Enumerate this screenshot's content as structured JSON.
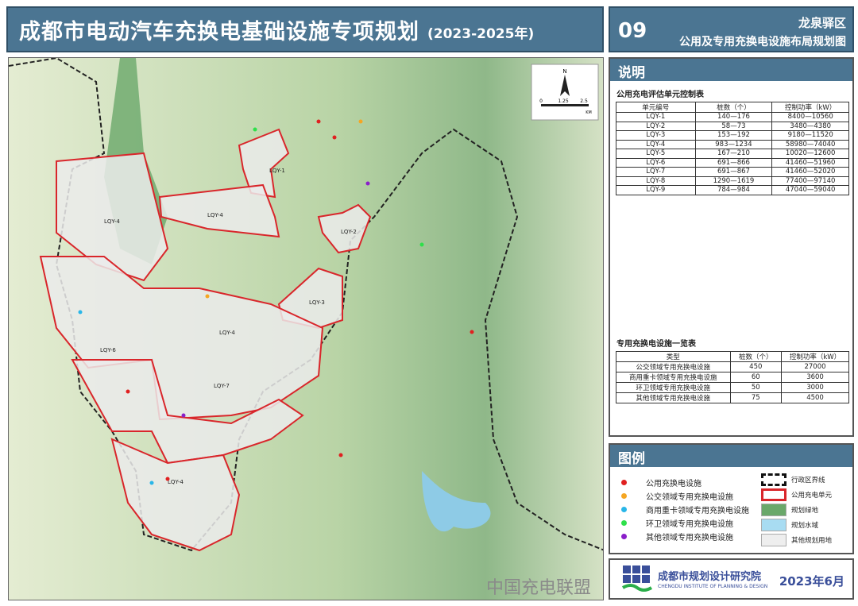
{
  "header": {
    "title": "成都市电动汽车充换电基础设施专项规划",
    "years": "(2023-2025年)",
    "sheet_no": "09",
    "district": "龙泉驿区",
    "map_title": "公用及专用充换电设施布局规划图"
  },
  "map": {
    "north": "N",
    "scale": [
      "0",
      "1.25",
      "2.5"
    ],
    "scale_unit": "KM",
    "unit_labels": [
      "LQY-1",
      "LQY-2",
      "LQY-3",
      "LQY-4",
      "LQY-4",
      "LQY-4",
      "LQY-4",
      "LQY-6",
      "LQY-7"
    ]
  },
  "notes": {
    "heading": "说明",
    "table1": {
      "title": "公用充电评估单元控制表",
      "headers": [
        "单元编号",
        "桩数（个）",
        "控制功率（kW）"
      ],
      "rows": [
        [
          "LQY-1",
          "140—176",
          "8400—10560"
        ],
        [
          "LQY-2",
          "58—73",
          "3480—4380"
        ],
        [
          "LQY-3",
          "153—192",
          "9180—11520"
        ],
        [
          "LQY-4",
          "983—1234",
          "58980—74040"
        ],
        [
          "LQY-5",
          "167—210",
          "10020—12600"
        ],
        [
          "LQY-6",
          "691—866",
          "41460—51960"
        ],
        [
          "LQY-7",
          "691—867",
          "41460—52020"
        ],
        [
          "LQY-8",
          "1290—1619",
          "77400—97140"
        ],
        [
          "LQY-9",
          "784—984",
          "47040—59040"
        ]
      ]
    },
    "table2": {
      "title": "专用充换电设施一览表",
      "headers": [
        "类型",
        "桩数（个）",
        "控制功率（kW）"
      ],
      "rows": [
        [
          "公交领域专用充换电设施",
          "450",
          "27000"
        ],
        [
          "商用重卡领域专用充换电设施",
          "60",
          "3600"
        ],
        [
          "环卫领域专用充换电设施",
          "50",
          "3000"
        ],
        [
          "其他领域专用充换电设施",
          "75",
          "4500"
        ]
      ]
    }
  },
  "legend": {
    "heading": "图例",
    "points": [
      {
        "label": "公用充换电设施",
        "color": "#e02020"
      },
      {
        "label": "公交领域专用充换电设施",
        "color": "#f5a623"
      },
      {
        "label": "商用重卡领域专用充换电设施",
        "color": "#29b6e8"
      },
      {
        "label": "环卫领域专用充换电设施",
        "color": "#2ee04a"
      },
      {
        "label": "其他领域专用充换电设施",
        "color": "#8a1fc9"
      }
    ],
    "areas": [
      {
        "label": "行政区界线"
      },
      {
        "label": "公用充电单元",
        "color": "#d9262b"
      },
      {
        "label": "规划绿地",
        "color": "#6aa86a"
      },
      {
        "label": "规划水域",
        "color": "#a8dcf2"
      },
      {
        "label": "其他规划用地",
        "color": "#eeeeee"
      }
    ]
  },
  "footer": {
    "org": "成都市规划设计研究院",
    "org_en": "CHENGDU INSTITUTE OF PLANNING & DESIGN",
    "date": "2023年6月",
    "watermark": "中国充电联盟"
  }
}
